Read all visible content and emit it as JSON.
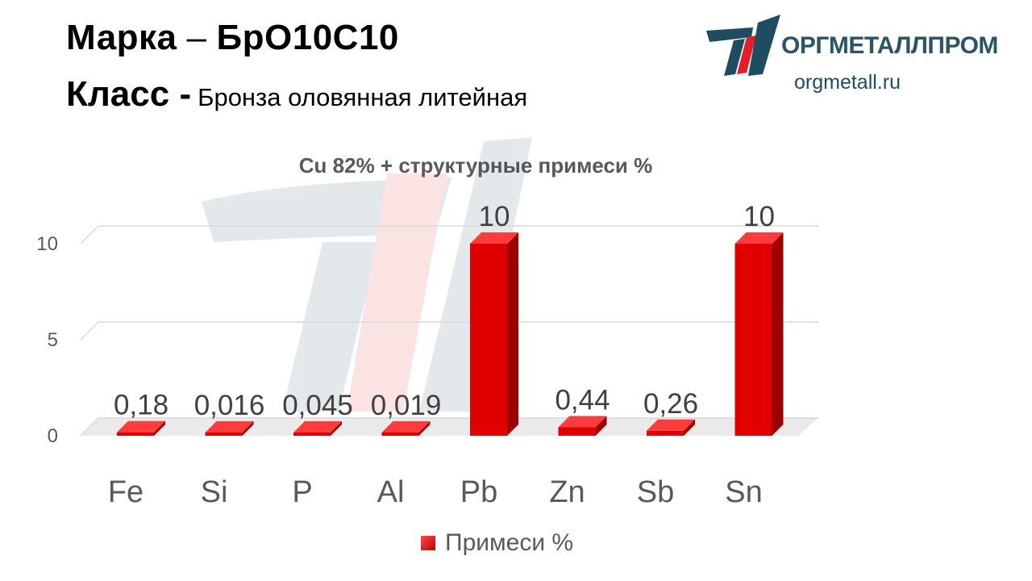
{
  "header": {
    "grade_label": "Марка",
    "grade_dash": "–",
    "grade_value": "БрО10С10",
    "class_label": "Класс -",
    "class_value": "Бронза оловянная литейная"
  },
  "logo": {
    "name": "ОРГМЕТАЛЛПРОМ",
    "site": "orgmetall.ru"
  },
  "colors": {
    "bar_front": "#e00000",
    "bar_top": "#ff3b3b",
    "bar_side": "#9e0000",
    "logo_blue": "#1f4d60",
    "logo_red": "#e31e24"
  },
  "chart_data": {
    "type": "bar",
    "title": "Cu 82% + структурные примеси %",
    "categories": [
      "Fe",
      "Si",
      "P",
      "Al",
      "Pb",
      "Zn",
      "Sb",
      "Sn"
    ],
    "series": [
      {
        "name": "Примеси %",
        "values": [
          0.18,
          0.016,
          0.045,
          0.019,
          10,
          0.44,
          0.26,
          10
        ],
        "labels": [
          "0,18",
          "0,016",
          "0,045",
          "0,019",
          "10",
          "0,44",
          "0,26",
          "10"
        ]
      }
    ],
    "yticks": [
      "0",
      "5",
      "10"
    ],
    "ylim": [
      0,
      10
    ],
    "grid": true,
    "legend": "bottom",
    "style": "3d-bar"
  }
}
